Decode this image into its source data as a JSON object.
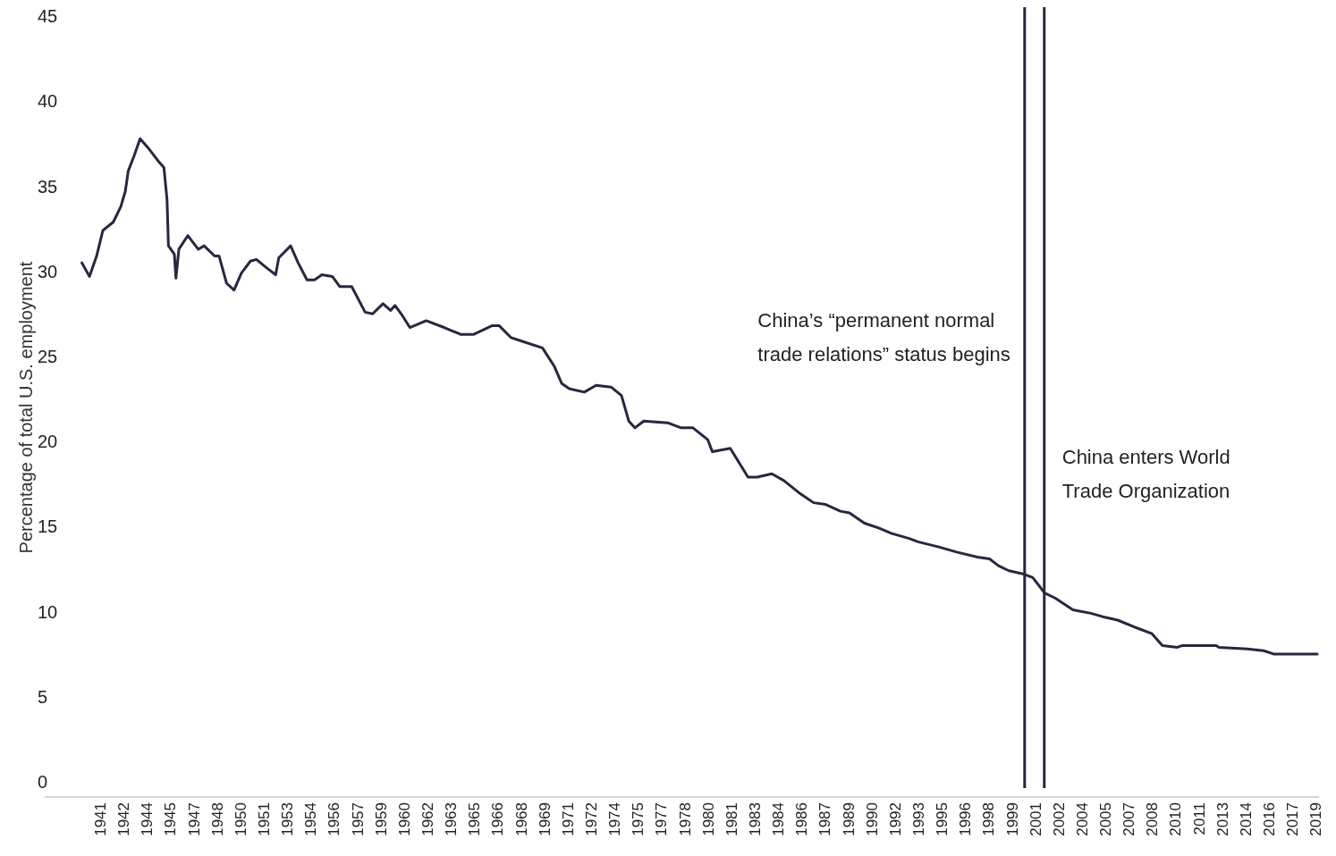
{
  "chart_data": {
    "type": "line",
    "ylabel": "Percentage of total U.S. employment",
    "x": [
      1939.83,
      1940.31,
      1940.77,
      1941.17,
      1941.84,
      1942.32,
      1942.61,
      1942.8,
      1943.18,
      1943.56,
      1944.04,
      1944.71,
      1945.09,
      1945.29,
      1945.38,
      1945.76,
      1945.86,
      1946.05,
      1946.62,
      1947.29,
      1947.67,
      1948.34,
      1948.63,
      1949.11,
      1949.59,
      1950.06,
      1950.64,
      1951.02,
      1951.69,
      1952.26,
      1952.46,
      1953.22,
      1953.7,
      1954.27,
      1954.75,
      1955.23,
      1955.9,
      1956.38,
      1957.14,
      1958.0,
      1958.48,
      1959.15,
      1959.63,
      1959.92,
      1960.39,
      1960.87,
      1961.92,
      1963.07,
      1964.12,
      1964.98,
      1966.13,
      1966.61,
      1967.37,
      1968.04,
      1969.38,
      1970.15,
      1970.62,
      1971.1,
      1972.06,
      1972.82,
      1973.78,
      1974.45,
      1974.92,
      1975.31,
      1975.88,
      1977.41,
      1978.28,
      1979.04,
      1979.99,
      1980.28,
      1981.43,
      1982.57,
      1983.15,
      1984.1,
      1984.87,
      1985.82,
      1986.78,
      1987.55,
      1988.5,
      1989.08,
      1990.04,
      1990.99,
      1991.76,
      1992.91,
      1993.48,
      1994.81,
      1995.96,
      1997.3,
      1998.07,
      1998.64,
      1999.31,
      2000.27,
      2000.84,
      2001.6,
      2002.27,
      2003.42,
      2004.57,
      2005.33,
      2006.29,
      2007.63,
      2008.49,
      2009.16,
      2010.12,
      2010.41,
      2012.61,
      2012.79,
      2014.61,
      2015.66,
      2016.33,
      2019.1
    ],
    "series": [
      {
        "color": "#2a2640",
        "values": [
          30.6,
          29.8,
          31.0,
          32.5,
          33.0,
          33.9,
          34.8,
          36.0,
          36.9,
          37.9,
          37.4,
          36.6,
          36.2,
          34.3,
          31.6,
          31.1,
          29.7,
          31.4,
          32.2,
          31.4,
          31.6,
          31.0,
          31.0,
          29.4,
          29.0,
          30.0,
          30.7,
          30.8,
          30.3,
          29.9,
          30.9,
          31.6,
          30.6,
          29.6,
          29.6,
          29.9,
          29.8,
          29.2,
          29.2,
          27.7,
          27.6,
          28.2,
          27.8,
          28.1,
          27.5,
          26.8,
          27.2,
          26.8,
          26.4,
          26.4,
          26.9,
          26.9,
          26.2,
          26.0,
          25.6,
          24.5,
          23.5,
          23.2,
          23.0,
          23.4,
          23.3,
          22.8,
          21.3,
          20.9,
          21.3,
          21.2,
          20.9,
          20.9,
          20.2,
          19.5,
          19.7,
          18.0,
          18.0,
          18.2,
          17.8,
          17.1,
          16.5,
          16.4,
          16.0,
          15.9,
          15.3,
          15.0,
          14.7,
          14.4,
          14.2,
          13.9,
          13.6,
          13.3,
          13.2,
          12.8,
          12.5,
          12.3,
          12.1,
          11.2,
          10.9,
          10.2,
          10.0,
          9.8,
          9.6,
          9.1,
          8.8,
          8.1,
          8.0,
          8.1,
          8.1,
          8.0,
          7.9,
          7.8,
          7.6,
          7.6
        ]
      }
    ],
    "xlim": [
      1937.44,
      2019.21
    ],
    "xticks": [
      {
        "value": 1941,
        "label": "1941"
      },
      {
        "value": 1942.5,
        "label": "1942"
      },
      {
        "value": 1944,
        "label": "1944"
      },
      {
        "value": 1945.5,
        "label": "1945"
      },
      {
        "value": 1947,
        "label": "1947"
      },
      {
        "value": 1948.5,
        "label": "1948"
      },
      {
        "value": 1950,
        "label": "1950"
      },
      {
        "value": 1951.5,
        "label": "1951"
      },
      {
        "value": 1953,
        "label": "1953"
      },
      {
        "value": 1954.5,
        "label": "1954"
      },
      {
        "value": 1956,
        "label": "1956"
      },
      {
        "value": 1957.5,
        "label": "1957"
      },
      {
        "value": 1959,
        "label": "1959"
      },
      {
        "value": 1960.5,
        "label": "1960"
      },
      {
        "value": 1962,
        "label": "1962"
      },
      {
        "value": 1963.5,
        "label": "1963"
      },
      {
        "value": 1965,
        "label": "1965"
      },
      {
        "value": 1966.5,
        "label": "1966"
      },
      {
        "value": 1968,
        "label": "1968"
      },
      {
        "value": 1969.5,
        "label": "1969"
      },
      {
        "value": 1971,
        "label": "1971"
      },
      {
        "value": 1972.5,
        "label": "1972"
      },
      {
        "value": 1974,
        "label": "1974"
      },
      {
        "value": 1975.5,
        "label": "1975"
      },
      {
        "value": 1977,
        "label": "1977"
      },
      {
        "value": 1978.5,
        "label": "1978"
      },
      {
        "value": 1980,
        "label": "1980"
      },
      {
        "value": 1981.5,
        "label": "1981"
      },
      {
        "value": 1983,
        "label": "1983"
      },
      {
        "value": 1984.5,
        "label": "1984"
      },
      {
        "value": 1986,
        "label": "1986"
      },
      {
        "value": 1987.5,
        "label": "1987"
      },
      {
        "value": 1989,
        "label": "1989"
      },
      {
        "value": 1990.5,
        "label": "1990"
      },
      {
        "value": 1992,
        "label": "1992"
      },
      {
        "value": 1993.5,
        "label": "1993"
      },
      {
        "value": 1995,
        "label": "1995"
      },
      {
        "value": 1996.5,
        "label": "1996"
      },
      {
        "value": 1998,
        "label": "1998"
      },
      {
        "value": 1999.5,
        "label": "1999"
      },
      {
        "value": 2001,
        "label": "2001"
      },
      {
        "value": 2002.5,
        "label": "2002"
      },
      {
        "value": 2004,
        "label": "2004"
      },
      {
        "value": 2005.5,
        "label": "2005"
      },
      {
        "value": 2007,
        "label": "2007"
      },
      {
        "value": 2008.5,
        "label": "2008"
      },
      {
        "value": 2010,
        "label": "2010"
      },
      {
        "value": 2011.5,
        "label": "2011"
      },
      {
        "value": 2013,
        "label": "2013"
      },
      {
        "value": 2014.5,
        "label": "2014"
      },
      {
        "value": 2016,
        "label": "2016"
      },
      {
        "value": 2017.5,
        "label": "2017"
      },
      {
        "value": 2019,
        "label": "2019"
      }
    ],
    "ylim": [
      -0.8,
      45
    ],
    "yticks": [
      0,
      5,
      10,
      15,
      20,
      25,
      30,
      35,
      40,
      45
    ],
    "grid": false,
    "marker": "none",
    "line_style": "solid",
    "ref_lines": [
      {
        "axis": "x",
        "value": 2000.32,
        "color": "#2a2640"
      },
      {
        "axis": "x",
        "value": 2001.58,
        "color": "#2a2640"
      }
    ],
    "annotations": [
      "China’s “permanent normal trade relations” status begins",
      "China enters World Trade Organization"
    ]
  }
}
